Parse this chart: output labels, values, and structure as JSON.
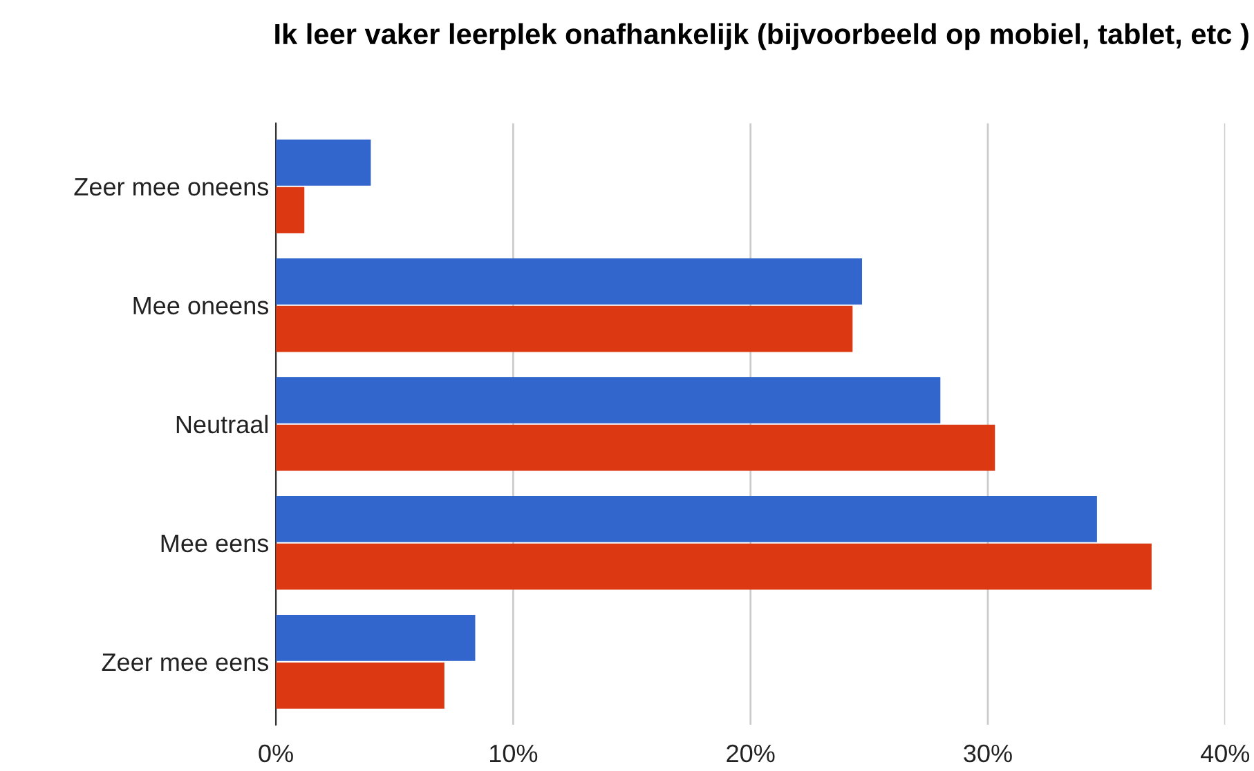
{
  "chart_data": {
    "type": "bar",
    "orientation": "horizontal",
    "title": "Ik leer vaker leerplek onafhankelijk (bijvoorbeeld op mobiel, tablet, etc )",
    "categories": [
      "Zeer mee oneens",
      "Mee oneens",
      "Neutraal",
      "Mee eens",
      "Zeer mee eens"
    ],
    "series": [
      {
        "color": "#3366cc",
        "values": [
          4.0,
          24.7,
          28.0,
          34.6,
          8.4
        ]
      },
      {
        "color": "#dc3912",
        "values": [
          1.2,
          24.3,
          30.3,
          36.9,
          7.1
        ]
      }
    ],
    "xlim": [
      0,
      40
    ],
    "xticks": [
      {
        "value": 0,
        "label": "0%"
      },
      {
        "value": 10,
        "label": "10%"
      },
      {
        "value": 20,
        "label": "20%"
      },
      {
        "value": 30,
        "label": "30%"
      },
      {
        "value": 40,
        "label": "40%"
      }
    ],
    "grid": "x"
  }
}
